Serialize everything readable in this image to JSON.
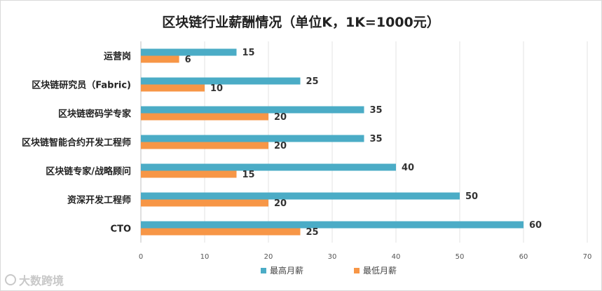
{
  "chart_data": {
    "type": "bar",
    "orientation": "horizontal",
    "title": "区块链行业薪酬情况（单位K，1K=1000元）",
    "categories": [
      "运营岗",
      "区块链研究员（Fabric)",
      "区块链密码学专家",
      "区块链智能合约开发工程师",
      "区块链专家/战略顾问",
      "资深开发工程师",
      "CTO"
    ],
    "series": [
      {
        "name": "最高月薪",
        "color": "#4bacc6",
        "values": [
          15,
          25,
          35,
          35,
          40,
          50,
          60
        ]
      },
      {
        "name": "最低月薪",
        "color": "#f79646",
        "values": [
          6,
          10,
          20,
          20,
          15,
          20,
          25
        ]
      }
    ],
    "xlim": [
      0,
      70
    ],
    "ticks": [
      0,
      10,
      20,
      30,
      40,
      50,
      60,
      70
    ],
    "grid": true,
    "legend_position": "bottom"
  },
  "watermark": "大数跨境"
}
